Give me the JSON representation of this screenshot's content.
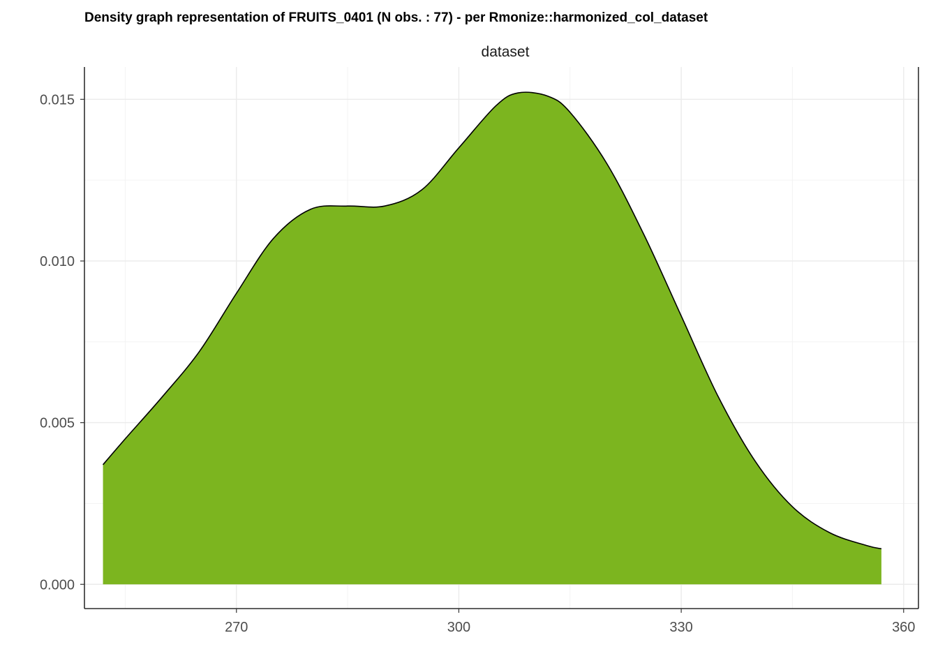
{
  "chart_data": {
    "type": "area",
    "title": "Density graph representation of FRUITS_0401 (N obs. : 77) - per Rmonize::harmonized_col_dataset",
    "facet_label": "dataset",
    "xlabel": "",
    "ylabel": "",
    "xlim": [
      249.5,
      362
    ],
    "ylim": [
      -0.00075,
      0.016
    ],
    "x_ticks": [
      270,
      300,
      330,
      360
    ],
    "x_tick_labels": [
      "270",
      "300",
      "330",
      "360"
    ],
    "y_ticks": [
      0.0,
      0.005,
      0.01,
      0.015
    ],
    "y_tick_labels": [
      "0.000",
      "0.005",
      "0.010",
      "0.015"
    ],
    "grid": true,
    "fill_color": "#7CB51F",
    "line_color": "#000000",
    "series": [
      {
        "x": [
          252,
          255,
          260,
          265,
          270,
          275,
          280,
          285,
          290,
          295,
          300,
          305,
          308,
          312,
          315,
          320,
          325,
          330,
          335,
          340,
          345,
          350,
          355,
          357
        ],
        "y": [
          0.0037,
          0.0045,
          0.0058,
          0.0072,
          0.009,
          0.0107,
          0.0116,
          0.0117,
          0.0117,
          0.0122,
          0.0135,
          0.0148,
          0.0152,
          0.0151,
          0.0146,
          0.013,
          0.0108,
          0.0083,
          0.0058,
          0.0038,
          0.0024,
          0.0016,
          0.0012,
          0.0011
        ]
      }
    ]
  }
}
